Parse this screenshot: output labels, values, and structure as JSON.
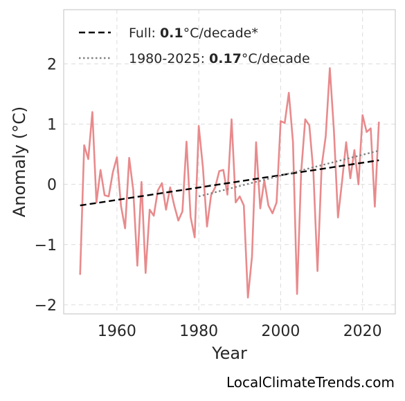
{
  "chart_data": {
    "type": "line",
    "xlabel": "Year",
    "ylabel": "Anomaly (°C)",
    "xlim": [
      1947,
      2028
    ],
    "ylim": [
      -2.15,
      2.9
    ],
    "xticks": [
      1960,
      1980,
      2000,
      2020
    ],
    "yticks": [
      -2,
      -1,
      0,
      1,
      2
    ],
    "ytick_labels": [
      "−2",
      "−1",
      "0",
      "1",
      "2"
    ],
    "grid": true,
    "legend_position": "top-left",
    "series": [
      {
        "color": "#e88a8c",
        "x": [
          1951,
          1952,
          1953,
          1954,
          1955,
          1956,
          1957,
          1958,
          1959,
          1960,
          1961,
          1962,
          1963,
          1964,
          1965,
          1966,
          1967,
          1968,
          1969,
          1970,
          1971,
          1972,
          1973,
          1974,
          1975,
          1976,
          1977,
          1978,
          1979,
          1980,
          1981,
          1982,
          1983,
          1984,
          1985,
          1986,
          1987,
          1988,
          1989,
          1990,
          1991,
          1992,
          1993,
          1994,
          1995,
          1996,
          1997,
          1998,
          1999,
          2000,
          2001,
          2002,
          2003,
          2004,
          2005,
          2006,
          2007,
          2008,
          2009,
          2010,
          2011,
          2012,
          2013,
          2014,
          2015,
          2016,
          2017,
          2018,
          2019,
          2020,
          2021,
          2022,
          2023,
          2024
        ],
        "y": [
          -1.5,
          0.65,
          0.42,
          1.2,
          -0.3,
          0.24,
          -0.18,
          -0.2,
          0.2,
          0.45,
          -0.36,
          -0.73,
          0.44,
          -0.1,
          -1.35,
          0.04,
          -1.47,
          -0.42,
          -0.52,
          -0.1,
          0.02,
          -0.42,
          -0.05,
          -0.35,
          -0.6,
          -0.45,
          0.71,
          -0.54,
          -0.88,
          0.97,
          0.28,
          -0.7,
          -0.18,
          -0.05,
          0.22,
          0.24,
          -0.17,
          1.08,
          -0.3,
          -0.2,
          -0.35,
          -1.88,
          -1.2,
          0.7,
          -0.4,
          0.07,
          -0.35,
          -0.48,
          -0.3,
          1.05,
          1.02,
          1.52,
          0.7,
          -1.82,
          0.2,
          1.08,
          0.98,
          0.2,
          -1.44,
          0.3,
          0.8,
          1.93,
          0.9,
          -0.55,
          0.05,
          0.7,
          0.1,
          0.57,
          0.0,
          1.15,
          0.87,
          0.93,
          -0.37,
          1.04
        ]
      },
      {
        "name": "Full: 0.1°C/decade*",
        "color": "#000000",
        "style": "dashed",
        "x": [
          1951,
          2024
        ],
        "y": [
          -0.35,
          0.4
        ]
      },
      {
        "name": "1980-2025: 0.17°C/decade",
        "color": "#808080",
        "style": "dotted",
        "x": [
          1980,
          2024
        ],
        "y": [
          -0.2,
          0.56
        ]
      }
    ],
    "legend": [
      {
        "prefix": "Full: ",
        "bold": "0.1",
        "suffix": "°C/decade*"
      },
      {
        "prefix": "1980-2025: ",
        "bold": "0.17",
        "suffix": "°C/decade"
      }
    ]
  },
  "watermark": "LocalClimateTrends.com"
}
